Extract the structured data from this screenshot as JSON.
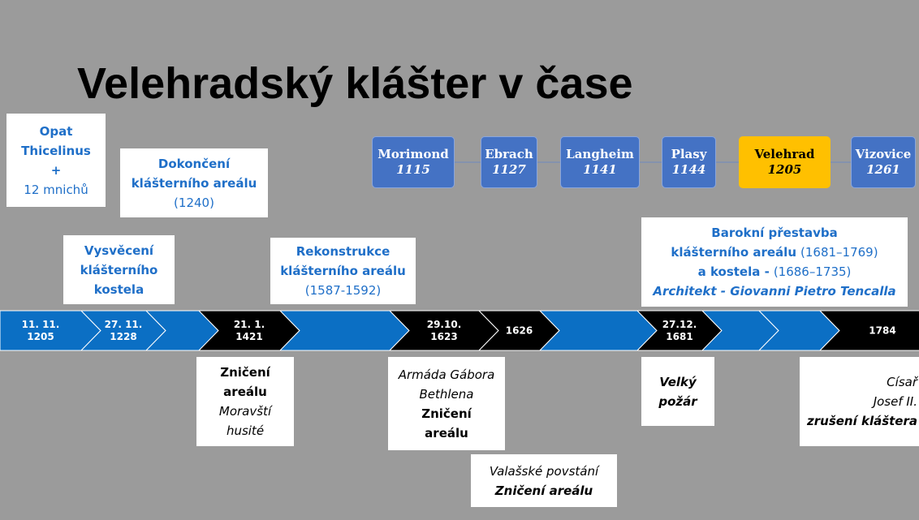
{
  "title": "Velehradský klášter v čase",
  "monasteries": [
    {
      "name": "Morimond",
      "year": "1115",
      "color": "#4472c4"
    },
    {
      "name": "Ebrach",
      "year": "1127",
      "color": "#4472c4"
    },
    {
      "name": "Langheim",
      "year": "1141",
      "color": "#4472c4"
    },
    {
      "name": "Plasy",
      "year": "1144",
      "color": "#4472c4"
    },
    {
      "name": "Velehrad",
      "year": "1205",
      "color": "#ffc000"
    },
    {
      "name": "Vizovice",
      "year": "1261",
      "color": "#4472c4"
    }
  ],
  "timeline": [
    {
      "color": "#0b6fc4",
      "lines": [
        "11. 11.",
        "1205"
      ]
    },
    {
      "color": "#0b6fc4",
      "lines": [
        "27. 11.",
        "1228"
      ]
    },
    {
      "color": "#0b6fc4"
    },
    {
      "color": "#000000",
      "lines": [
        "21. 1.",
        "1421"
      ]
    },
    {
      "color": "#0b6fc4"
    },
    {
      "color": "#000000",
      "lines": [
        "29.10.",
        "1623"
      ]
    },
    {
      "color": "#000000",
      "lines": [
        "1626"
      ]
    },
    {
      "color": "#0b6fc4"
    },
    {
      "color": "#000000",
      "lines": [
        "27.12.",
        "1681"
      ]
    },
    {
      "color": "#0b6fc4"
    },
    {
      "color": "#0b6fc4"
    },
    {
      "color": "#000000",
      "lines": [
        "1784"
      ]
    }
  ],
  "events": [
    {
      "color": "#1f6fc8",
      "lines": [
        [
          {
            "text": "Opat",
            "style": "bold"
          }
        ],
        [
          {
            "text": "Thicelinus",
            "style": "bold"
          }
        ],
        [
          {
            "text": "+",
            "style": "bold"
          }
        ],
        [
          {
            "text": "12 mnichů",
            "style": "normal"
          }
        ]
      ]
    },
    {
      "color": "#1f6fc8",
      "lines": [
        [
          {
            "text": "Dokončení",
            "style": "bold"
          }
        ],
        [
          {
            "text": "klášterního areálu",
            "style": "bold"
          }
        ],
        [
          {
            "text": "(1240)",
            "style": "normal"
          }
        ]
      ]
    },
    {
      "color": "#1f6fc8",
      "lines": [
        [
          {
            "text": "Vysvěcení",
            "style": "bold"
          }
        ],
        [
          {
            "text": "klášterního",
            "style": "bold"
          }
        ],
        [
          {
            "text": "kostela",
            "style": "bold"
          }
        ]
      ]
    },
    {
      "color": "#1f6fc8",
      "lines": [
        [
          {
            "text": "Rekonstrukce",
            "style": "bold"
          }
        ],
        [
          {
            "text": "klášterního areálu",
            "style": "bold"
          }
        ],
        [
          {
            "text": "(1587-1592)",
            "style": "normal"
          }
        ]
      ]
    },
    {
      "color": "#1f6fc8",
      "lines": [
        [
          {
            "text": "Barokní přestavba",
            "style": "bold"
          }
        ],
        [
          {
            "text": "klášterního areálu",
            "style": "bold"
          },
          {
            "text": "(1681–1769)",
            "style": "normal"
          }
        ],
        [
          {
            "text": "a kostela -",
            "style": "bold"
          },
          {
            "text": "(1686–1735)",
            "style": "normal"
          }
        ],
        [
          {
            "text": "Architekt - Giovanni Pietro Tencalla",
            "style": "bold-italic"
          }
        ]
      ]
    },
    {
      "color": "#000000",
      "lines": [
        [
          {
            "text": "Zničení",
            "style": "bold"
          }
        ],
        [
          {
            "text": "areálu",
            "style": "bold"
          }
        ],
        [
          {
            "text": "Moravští",
            "style": "italic"
          }
        ],
        [
          {
            "text": "husité",
            "style": "italic"
          }
        ]
      ]
    },
    {
      "color": "#000000",
      "lines": [
        [
          {
            "text": "Armáda Gábora",
            "style": "italic"
          }
        ],
        [
          {
            "text": "Bethlena",
            "style": "italic"
          }
        ],
        [
          {
            "text": "Zničení",
            "style": "bold"
          }
        ],
        [
          {
            "text": "areálu",
            "style": "bold"
          }
        ]
      ]
    },
    {
      "color": "#000000",
      "lines": [
        [
          {
            "text": "Valašské povstání",
            "style": "italic"
          }
        ],
        [
          {
            "text": "Zničení areálu",
            "style": "bold-italic"
          }
        ]
      ]
    },
    {
      "color": "#000000",
      "lines": [
        [
          {
            "text": "Velký",
            "style": "bold-italic"
          }
        ],
        [
          {
            "text": "požár",
            "style": "bold-italic"
          }
        ]
      ]
    },
    {
      "color": "#000000",
      "lines": [
        [
          {
            "text": "Císař",
            "style": "italic"
          }
        ],
        [
          {
            "text": "Josef II.",
            "style": "italic"
          }
        ],
        [
          {
            "text": "zrušení kláštera",
            "style": "bold-italic"
          }
        ]
      ]
    }
  ]
}
